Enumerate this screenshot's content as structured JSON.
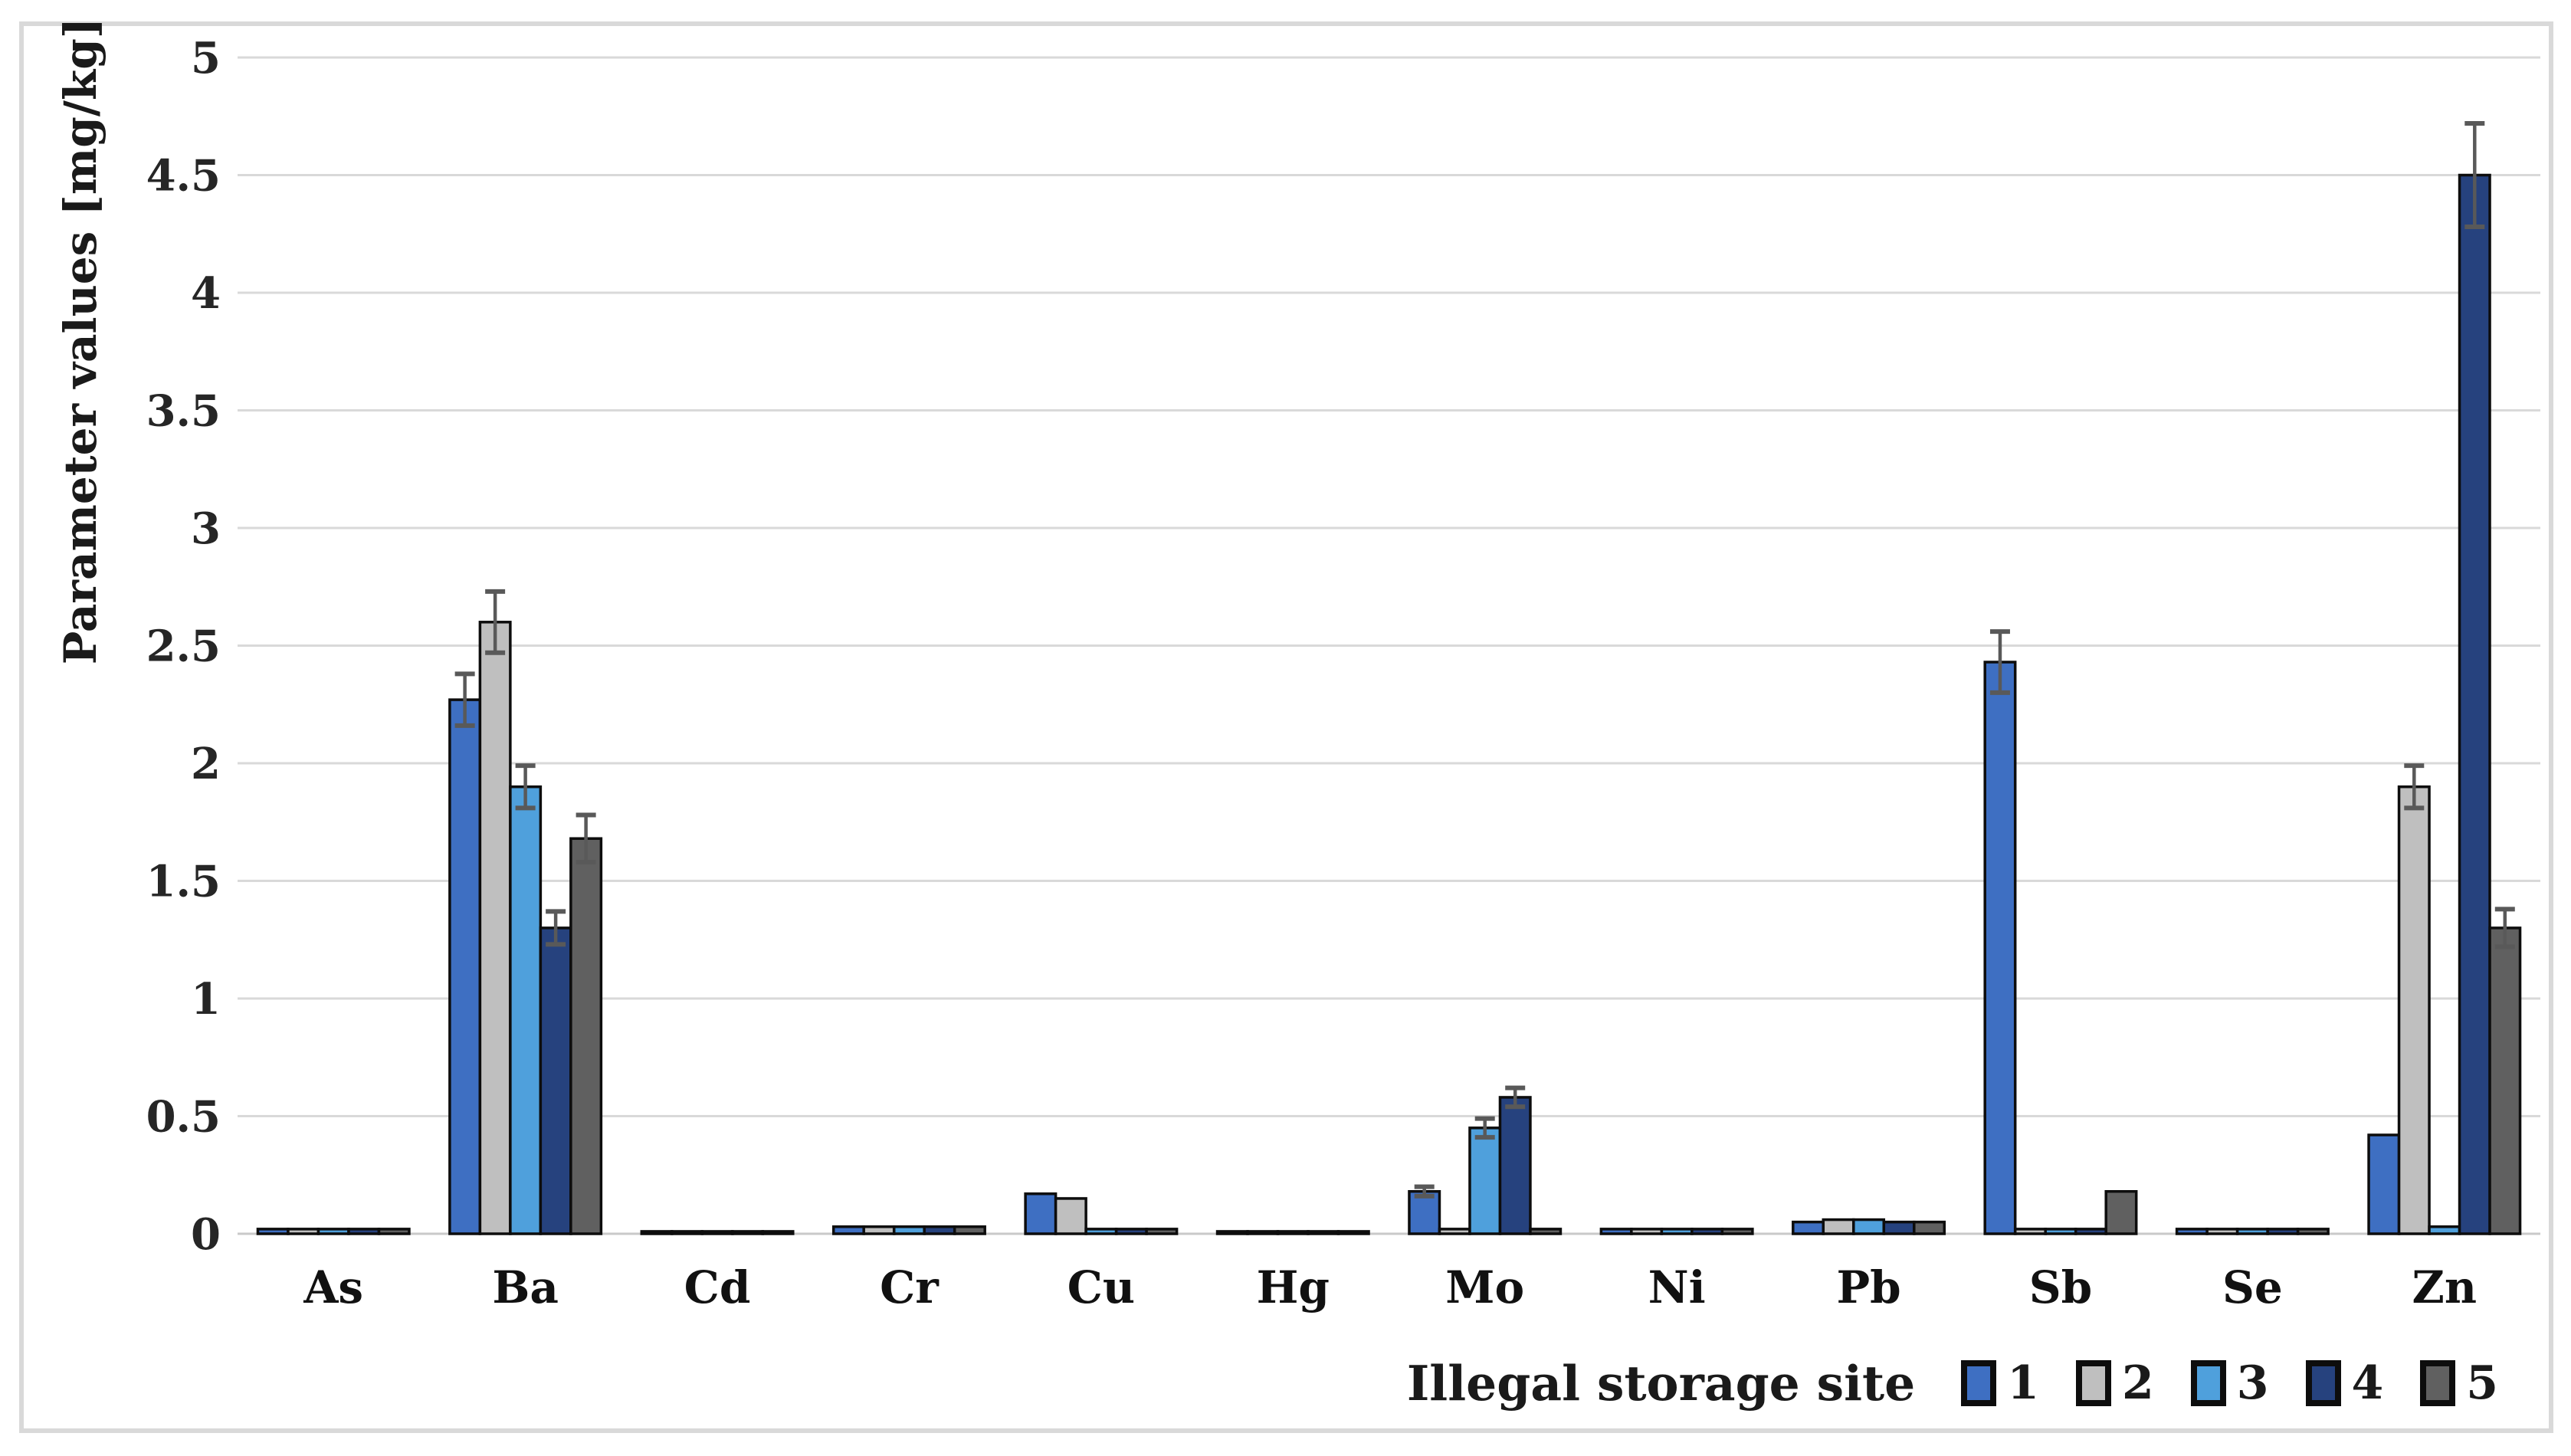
{
  "figure": {
    "y_axis_title": "Parameter values [mg/kg]",
    "legend_title": "Illegal storage site"
  },
  "colors": {
    "background": "#ffffff",
    "frame_border": "#d9d9d9",
    "gridline": "#d9d9d9",
    "axis_baseline": "#c9c9c9",
    "bar_outline": "#0d0d0d",
    "error_bar": "#595959",
    "text": "#1a1a1a"
  },
  "chart_data": {
    "type": "bar",
    "title": "",
    "xlabel": "",
    "ylabel": "Parameter values [mg/kg]",
    "ylim": [
      0,
      5
    ],
    "ytick_step": 0.5,
    "ytick_labels": [
      "0",
      "0.5",
      "1",
      "1.5",
      "2",
      "2.5",
      "3",
      "3.5",
      "4",
      "4.5",
      "5"
    ],
    "grid": true,
    "legend_title": "Illegal storage site",
    "legend_position": "bottom-right",
    "categories": [
      "As",
      "Ba",
      "Cd",
      "Cr",
      "Cu",
      "Hg",
      "Mo",
      "Ni",
      "Pb",
      "Sb",
      "Se",
      "Zn"
    ],
    "series": [
      {
        "name": "1",
        "color": "#3e6fc2",
        "values": [
          0.02,
          2.27,
          0.01,
          0.03,
          0.17,
          0.01,
          0.18,
          0.02,
          0.05,
          2.43,
          0.02,
          0.42
        ],
        "errors": [
          0,
          0.11,
          0,
          0,
          0,
          0,
          0.02,
          0,
          0,
          0.13,
          0,
          0
        ]
      },
      {
        "name": "2",
        "color": "#bfbfbf",
        "values": [
          0.02,
          2.6,
          0.01,
          0.03,
          0.15,
          0.01,
          0.02,
          0.02,
          0.06,
          0.02,
          0.02,
          1.9
        ],
        "errors": [
          0,
          0.13,
          0,
          0,
          0,
          0,
          0,
          0,
          0,
          0,
          0,
          0.09
        ]
      },
      {
        "name": "3",
        "color": "#4fa0dc",
        "values": [
          0.02,
          1.9,
          0.01,
          0.03,
          0.02,
          0.01,
          0.45,
          0.02,
          0.06,
          0.02,
          0.02,
          0.03
        ],
        "errors": [
          0,
          0.09,
          0,
          0,
          0,
          0,
          0.04,
          0,
          0,
          0,
          0,
          0
        ]
      },
      {
        "name": "4",
        "color": "#26427e",
        "values": [
          0.02,
          1.3,
          0.01,
          0.03,
          0.02,
          0.01,
          0.58,
          0.02,
          0.05,
          0.02,
          0.02,
          4.5
        ],
        "errors": [
          0,
          0.07,
          0,
          0,
          0,
          0,
          0.04,
          0,
          0,
          0,
          0,
          0.22
        ]
      },
      {
        "name": "5",
        "color": "#606060",
        "values": [
          0.02,
          1.68,
          0.01,
          0.03,
          0.02,
          0.01,
          0.02,
          0.02,
          0.05,
          0.18,
          0.02,
          1.3
        ],
        "errors": [
          0,
          0.1,
          0,
          0,
          0,
          0,
          0,
          0,
          0,
          0,
          0,
          0.08
        ]
      }
    ]
  }
}
